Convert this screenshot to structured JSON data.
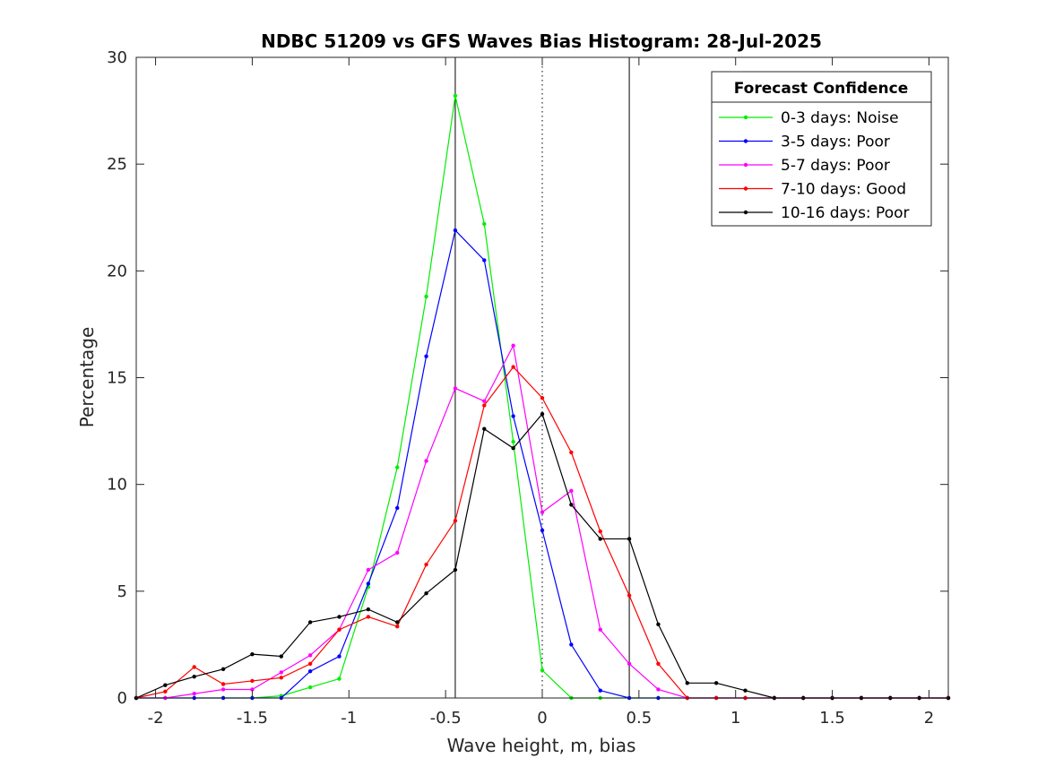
{
  "chart_data": {
    "type": "line",
    "title": "NDBC 51209 vs GFS Waves Bias Histogram: 28-Jul-2025",
    "xlabel": "Wave height, m, bias",
    "ylabel": "Percentage",
    "xlim": [
      -2.1,
      2.1
    ],
    "ylim": [
      0,
      30
    ],
    "xticks": [
      -2,
      -1.5,
      -1,
      -0.5,
      0,
      0.5,
      1,
      1.5,
      2
    ],
    "xtick_labels": [
      "-2",
      "-1.5",
      "-1",
      "-0.5",
      "0",
      "0.5",
      "1",
      "1.5",
      "2"
    ],
    "yticks": [
      0,
      5,
      10,
      15,
      20,
      25,
      30
    ],
    "ytick_labels": [
      "0",
      "5",
      "10",
      "15",
      "20",
      "25",
      "30"
    ],
    "grid": false,
    "reference_lines": [
      {
        "x": -0.45,
        "style": "solid"
      },
      {
        "x": 0,
        "style": "dotted"
      },
      {
        "x": 0.45,
        "style": "solid"
      }
    ],
    "legend": {
      "title": "Forecast Confidence",
      "placement": "top-right"
    },
    "x": [
      -2.1,
      -1.95,
      -1.8,
      -1.65,
      -1.5,
      -1.35,
      -1.2,
      -1.05,
      -0.9,
      -0.75,
      -0.6,
      -0.45,
      -0.3,
      -0.15,
      0,
      0.15,
      0.3,
      0.45,
      0.6,
      0.75,
      0.9,
      1.05,
      1.2,
      1.35,
      1.5,
      1.65,
      1.8,
      1.95,
      2.1
    ],
    "series": [
      {
        "name": "0-3 days: Noise",
        "color": "#00ee00",
        "values": [
          0,
          0,
          0,
          0,
          0,
          0.1,
          0.5,
          0.9,
          5.2,
          10.8,
          18.8,
          28.2,
          22.2,
          12.0,
          1.3,
          0,
          0,
          0,
          0,
          0,
          0,
          0,
          0,
          0,
          0,
          0,
          0,
          0,
          0
        ]
      },
      {
        "name": "3-5 days: Poor",
        "color": "#0000ff",
        "values": [
          0,
          0,
          0,
          0,
          0,
          0,
          1.25,
          1.95,
          5.35,
          8.9,
          16.0,
          21.9,
          20.5,
          13.2,
          7.85,
          2.5,
          0.35,
          0,
          0,
          0,
          0,
          0,
          0,
          0,
          0,
          0,
          0,
          0,
          0
        ]
      },
      {
        "name": "5-7 days: Poor",
        "color": "#ff00ff",
        "values": [
          0,
          0,
          0.2,
          0.4,
          0.4,
          1.2,
          2.0,
          3.2,
          6.0,
          6.8,
          11.1,
          14.5,
          13.9,
          16.5,
          8.7,
          9.7,
          3.2,
          1.6,
          0.4,
          0,
          0,
          0,
          0,
          0,
          0,
          0,
          0,
          0,
          0
        ]
      },
      {
        "name": "7-10 days: Good",
        "color": "#ff0000",
        "values": [
          0,
          0.3,
          1.45,
          0.65,
          0.8,
          0.95,
          1.6,
          3.2,
          3.8,
          3.35,
          6.25,
          8.3,
          13.7,
          15.5,
          14.05,
          11.5,
          7.8,
          4.8,
          1.6,
          0,
          0,
          0,
          0,
          0,
          0,
          0,
          0,
          0,
          0
        ]
      },
      {
        "name": "10-16 days: Poor",
        "color": "#000000",
        "values": [
          0,
          0.6,
          1.0,
          1.35,
          2.05,
          1.95,
          3.55,
          3.8,
          4.15,
          3.55,
          4.9,
          6.0,
          12.6,
          11.7,
          13.3,
          9.05,
          7.45,
          7.45,
          3.45,
          0.7,
          0.7,
          0.35,
          0,
          0,
          0,
          0,
          0,
          0,
          0
        ]
      }
    ]
  }
}
